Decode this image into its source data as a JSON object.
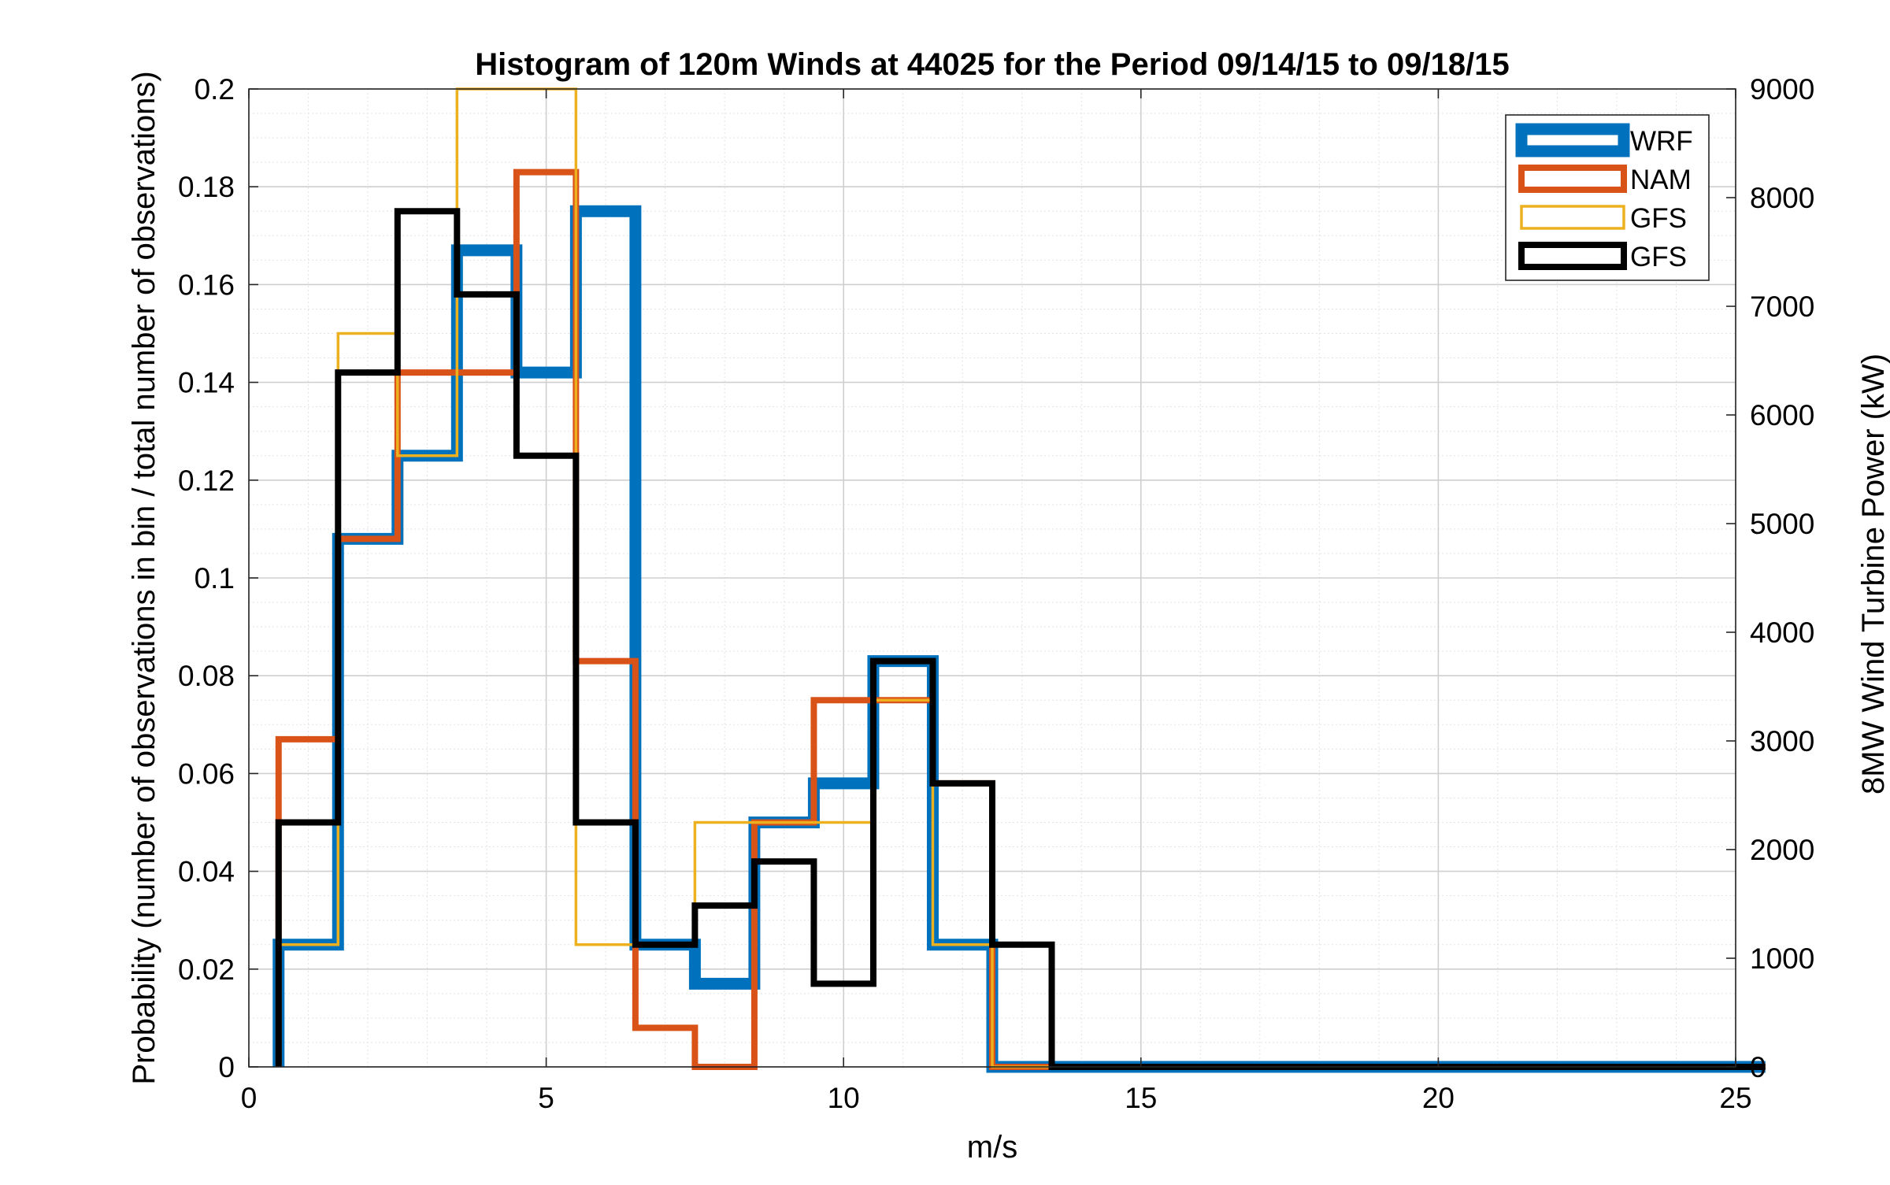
{
  "chart_data": {
    "type": "histogram",
    "title": "Histogram of 120m Winds at 44025 for the Period 09/14/15 to 09/18/15",
    "xlabel": "m/s",
    "ylabel": "Probability (number of observations in bin / total number of observations)",
    "y2label": "8MW Wind Turbine Power (kW)",
    "xlim": [
      0,
      25
    ],
    "ylim": [
      0,
      0.2
    ],
    "y2lim": [
      0,
      9000
    ],
    "xticks": [
      "0",
      "5",
      "10",
      "15",
      "20",
      "25"
    ],
    "yticks": [
      "0",
      "0.02",
      "0.04",
      "0.06",
      "0.08",
      "0.1",
      "0.12",
      "0.14",
      "0.16",
      "0.18",
      "0.2"
    ],
    "y2ticks": [
      "0",
      "1000",
      "2000",
      "3000",
      "4000",
      "5000",
      "6000",
      "7000",
      "8000",
      "9000"
    ],
    "grid": "on (major and minor)",
    "legend_position": "top-right",
    "bin_edges": [
      0.5,
      1.5,
      2.5,
      3.5,
      4.5,
      5.5,
      6.5,
      7.5,
      8.5,
      9.5,
      10.5,
      11.5,
      12.5,
      13.5,
      14.5,
      15.5,
      16.5,
      17.5,
      18.5,
      19.5,
      20.5,
      21.5,
      22.5,
      23.5,
      24.5,
      25.5
    ],
    "series": [
      {
        "name": "WRF",
        "color": "#0072BD",
        "line": "thick",
        "values": [
          0.025,
          0.108,
          0.125,
          0.167,
          0.142,
          0.175,
          0.025,
          0.017,
          0.05,
          0.058,
          0.083,
          0.025,
          0,
          0,
          0,
          0,
          0,
          0,
          0,
          0,
          0,
          0,
          0,
          0,
          0
        ]
      },
      {
        "name": "NAM",
        "color": "#D95319",
        "line": "medium",
        "values": [
          0.067,
          0.108,
          0.142,
          0.142,
          0.183,
          0.083,
          0.008,
          0,
          0.05,
          0.075,
          0.075,
          0.058,
          0,
          0,
          0,
          0,
          0,
          0,
          0,
          0,
          0,
          0,
          0,
          0,
          0
        ]
      },
      {
        "name": "GFS",
        "color": "#EDB120",
        "line": "thin",
        "values": [
          0.025,
          0.15,
          0.125,
          0.2,
          0.2,
          0.025,
          0.025,
          0.05,
          0.05,
          0.05,
          0.075,
          0.025,
          0,
          0,
          0,
          0,
          0,
          0,
          0,
          0,
          0,
          0,
          0,
          0,
          0
        ]
      },
      {
        "name": "GFS",
        "color": "#000000",
        "line": "medium",
        "values": [
          0.05,
          0.142,
          0.175,
          0.158,
          0.125,
          0.05,
          0.025,
          0.033,
          0.042,
          0.017,
          0.083,
          0.058,
          0.025,
          0,
          0,
          0,
          0,
          0,
          0,
          0,
          0,
          0,
          0,
          0,
          0
        ]
      }
    ]
  }
}
